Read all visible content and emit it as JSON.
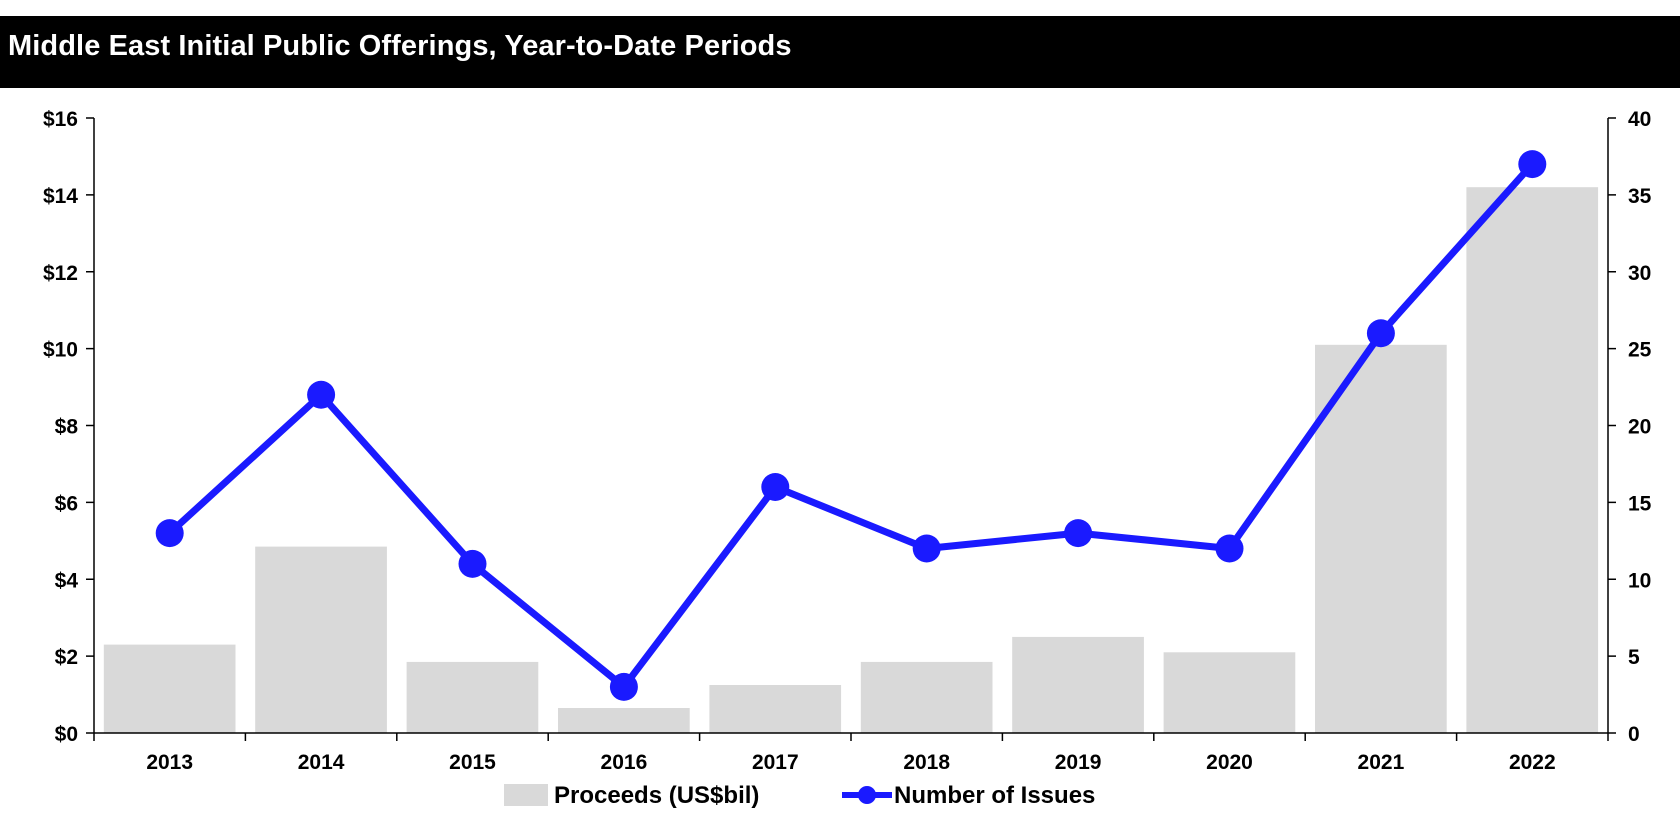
{
  "chart_data": {
    "type": "bar",
    "title": "Middle East Initial Public Offerings, Year-to-Date Periods",
    "xlabel": "",
    "ylabel": "",
    "categories": [
      "2013",
      "2014",
      "2015",
      "2016",
      "2017",
      "2018",
      "2019",
      "2020",
      "2021",
      "2022"
    ],
    "series": [
      {
        "name": "Proceeds (US$bil)",
        "type": "bar",
        "axis": "left",
        "color": "#d9d9d9",
        "values": [
          2.3,
          4.85,
          1.85,
          0.65,
          1.25,
          1.85,
          2.5,
          2.1,
          10.1,
          14.2
        ]
      },
      {
        "name": "Number of Issues",
        "type": "line",
        "axis": "right",
        "color": "#1a1aff",
        "values": [
          13,
          22,
          11,
          3,
          16,
          12,
          13,
          12,
          26,
          37
        ]
      }
    ],
    "y_left": {
      "ylim": [
        0,
        16
      ],
      "ticks": [
        0,
        2,
        4,
        6,
        8,
        10,
        12,
        14,
        16
      ],
      "tick_labels": [
        "$0",
        "$2",
        "$4",
        "$6",
        "$8",
        "$10",
        "$12",
        "$14",
        "$16"
      ]
    },
    "y_right": {
      "ylim": [
        0,
        40
      ],
      "ticks": [
        0,
        5,
        10,
        15,
        20,
        25,
        30,
        35,
        40
      ],
      "tick_labels": [
        "0",
        "5",
        "10",
        "15",
        "20",
        "25",
        "30",
        "35",
        "40"
      ]
    },
    "grid": false,
    "legend_position": "bottom"
  }
}
